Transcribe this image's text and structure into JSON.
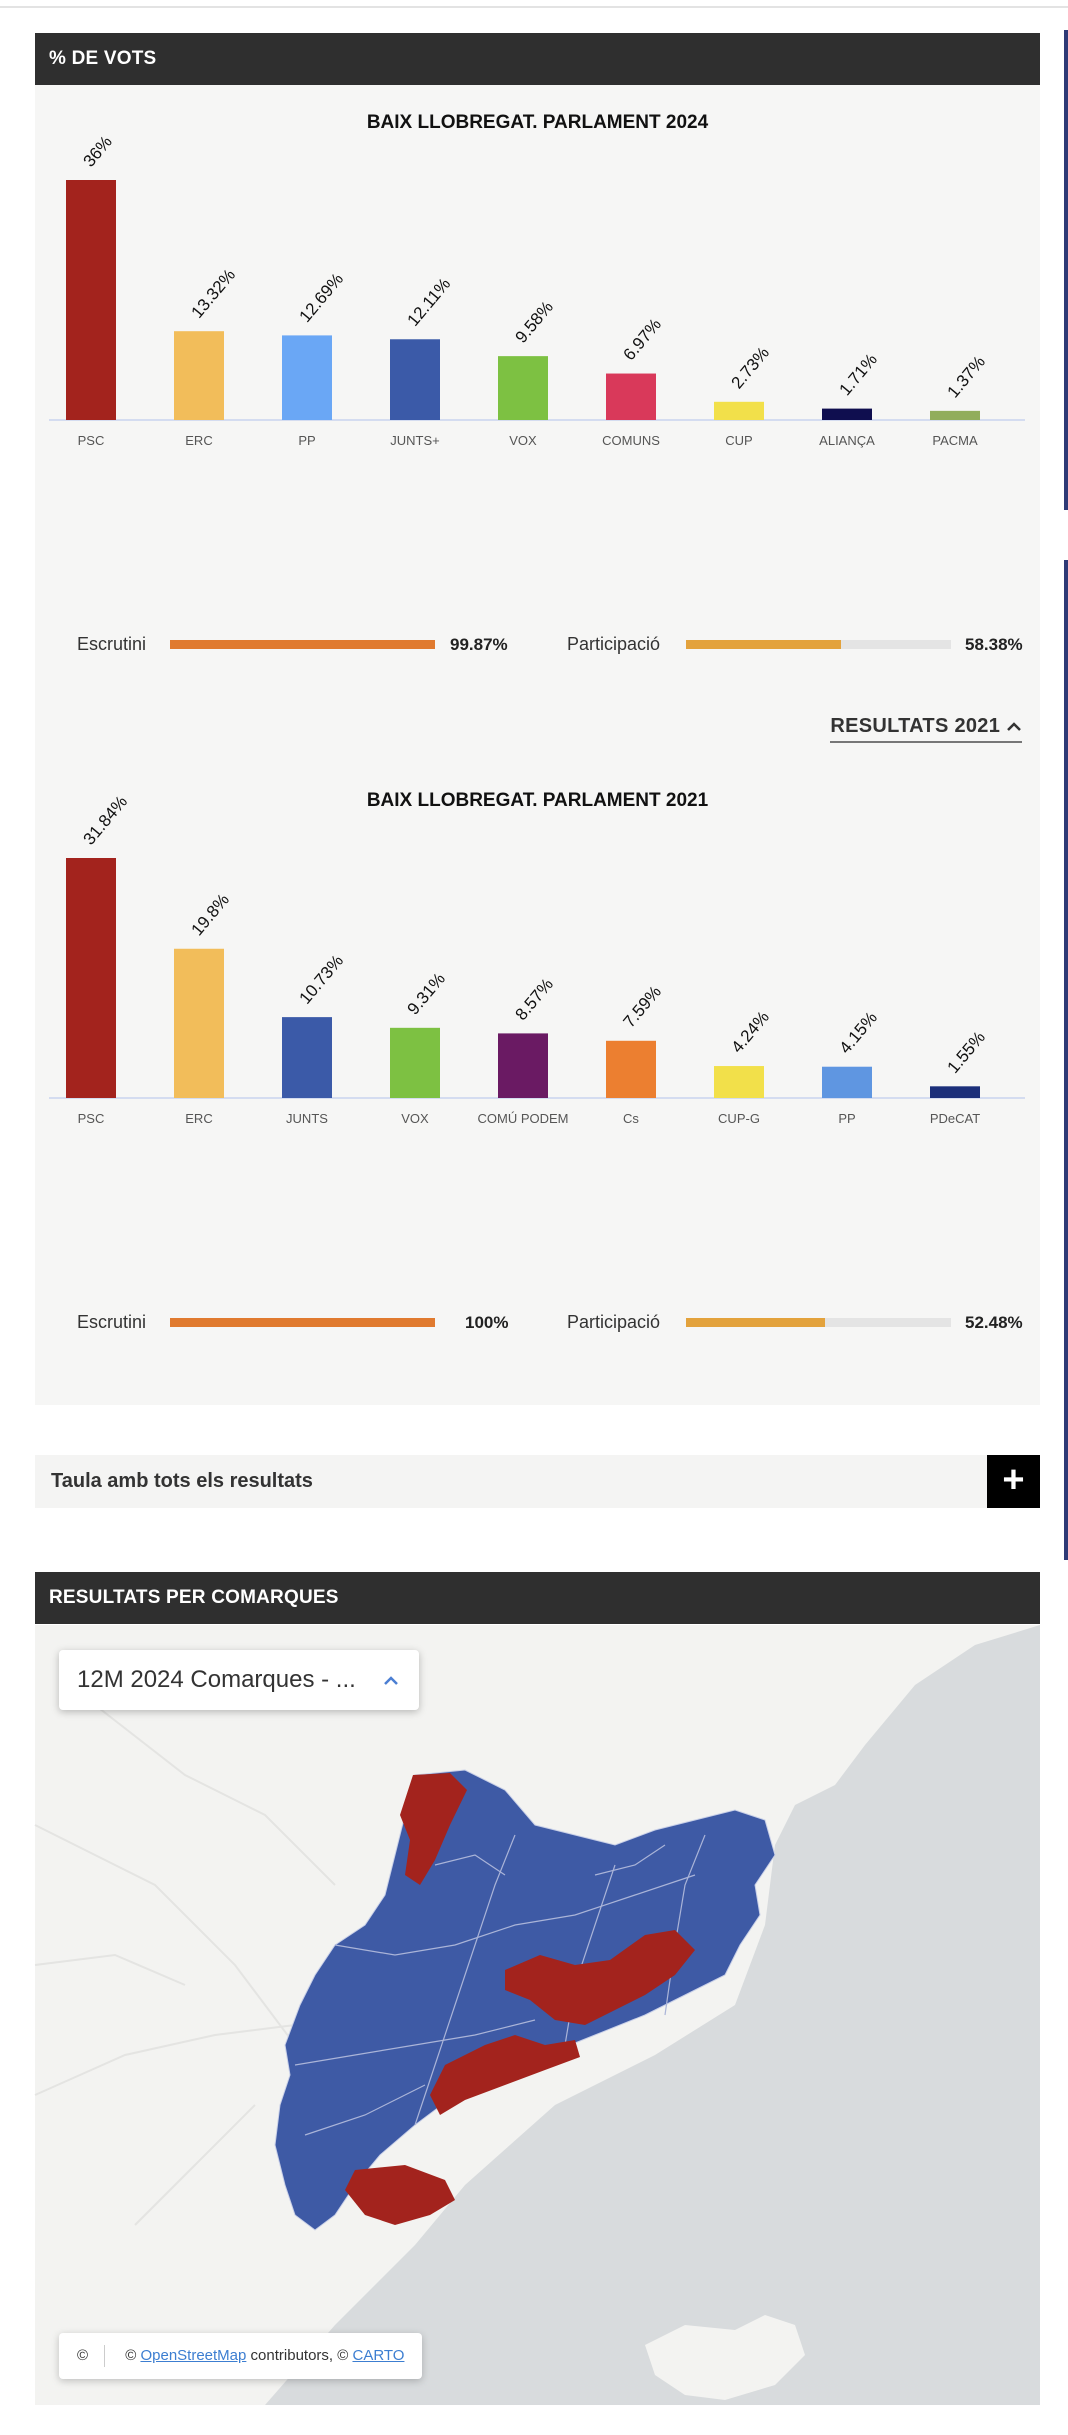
{
  "votes_section": {
    "title": "% DE VOTS"
  },
  "charts": [
    {
      "title": "BAIX LLOBREGAT. PARLAMENT 2024",
      "escrutini_label": "Escrutini",
      "escrutini_value": "99.87%",
      "escrutini_pct": 99.87,
      "participacio_label": "Participació",
      "participacio_value": "58.38%",
      "participacio_pct": 58.38
    },
    {
      "title": "BAIX LLOBREGAT. PARLAMENT 2021",
      "escrutini_label": "Escrutini",
      "escrutini_value": "100%",
      "escrutini_pct": 100,
      "participacio_label": "Participació",
      "participacio_value": "52.48%",
      "participacio_pct": 52.48
    }
  ],
  "results_toggle": {
    "label": "RESULTATS 2021",
    "icon": "chevron-up-icon"
  },
  "colors": {
    "escrutini": "#e07a2f",
    "participacio": "#e3a23c",
    "header": "#2f2f2f"
  },
  "chart_data": [
    {
      "type": "bar",
      "title": "BAIX LLOBREGAT. PARLAMENT 2024",
      "categories": [
        "PSC",
        "ERC",
        "PP",
        "JUNTS+",
        "VOX",
        "COMUNS",
        "CUP",
        "ALIANÇA",
        "PACMA"
      ],
      "values": [
        36,
        13.32,
        12.69,
        12.11,
        9.58,
        6.97,
        2.73,
        1.71,
        1.37
      ],
      "labels": [
        "36%",
        "13.32%",
        "12.69%",
        "12.11%",
        "9.58%",
        "6.97%",
        "2.73%",
        "1.71%",
        "1.37%"
      ],
      "colors": [
        "#a3231d",
        "#f2bd5a",
        "#6aa7f5",
        "#3b5aa8",
        "#7dc142",
        "#d9395a",
        "#f2e04a",
        "#0f0e4f",
        "#91ad5b"
      ],
      "ylim": [
        0,
        36
      ]
    },
    {
      "type": "bar",
      "title": "BAIX LLOBREGAT. PARLAMENT 2021",
      "categories": [
        "PSC",
        "ERC",
        "JUNTS",
        "VOX",
        "COMÚ PODEM",
        "Cs",
        "CUP-G",
        "PP",
        "PDeCAT"
      ],
      "values": [
        31.84,
        19.8,
        10.73,
        9.31,
        8.57,
        7.59,
        4.24,
        4.15,
        1.55
      ],
      "labels": [
        "31.84%",
        "19.8%",
        "10.73%",
        "9.31%",
        "8.57%",
        "7.59%",
        "4.24%",
        "4.15%",
        "1.55%"
      ],
      "colors": [
        "#a3231d",
        "#f2bd5a",
        "#3b5aa8",
        "#7dc142",
        "#6a1a63",
        "#ec7f30",
        "#f2e04a",
        "#5f96e1",
        "#1b2f7a"
      ],
      "ylim": [
        0,
        31.84
      ]
    }
  ],
  "table_toggle": {
    "label": "Taula amb tots els resultats",
    "icon": "plus-icon",
    "symbol": "+"
  },
  "map_section": {
    "title": "RESULTATS PER COMARQUES",
    "select_value": "12M 2024 Comarques - ...",
    "select_icon": "chevron-up-icon",
    "attribution": {
      "copyright": "©",
      "prefix": "©",
      "osm": "OpenStreetMap",
      "middle": "contributors, ©",
      "carto": "CARTO"
    },
    "colors": {
      "psc": "#a3231d",
      "junts": "#3e5aa5",
      "sea": "#d8dbdd",
      "land": "#f3f3f1"
    }
  }
}
